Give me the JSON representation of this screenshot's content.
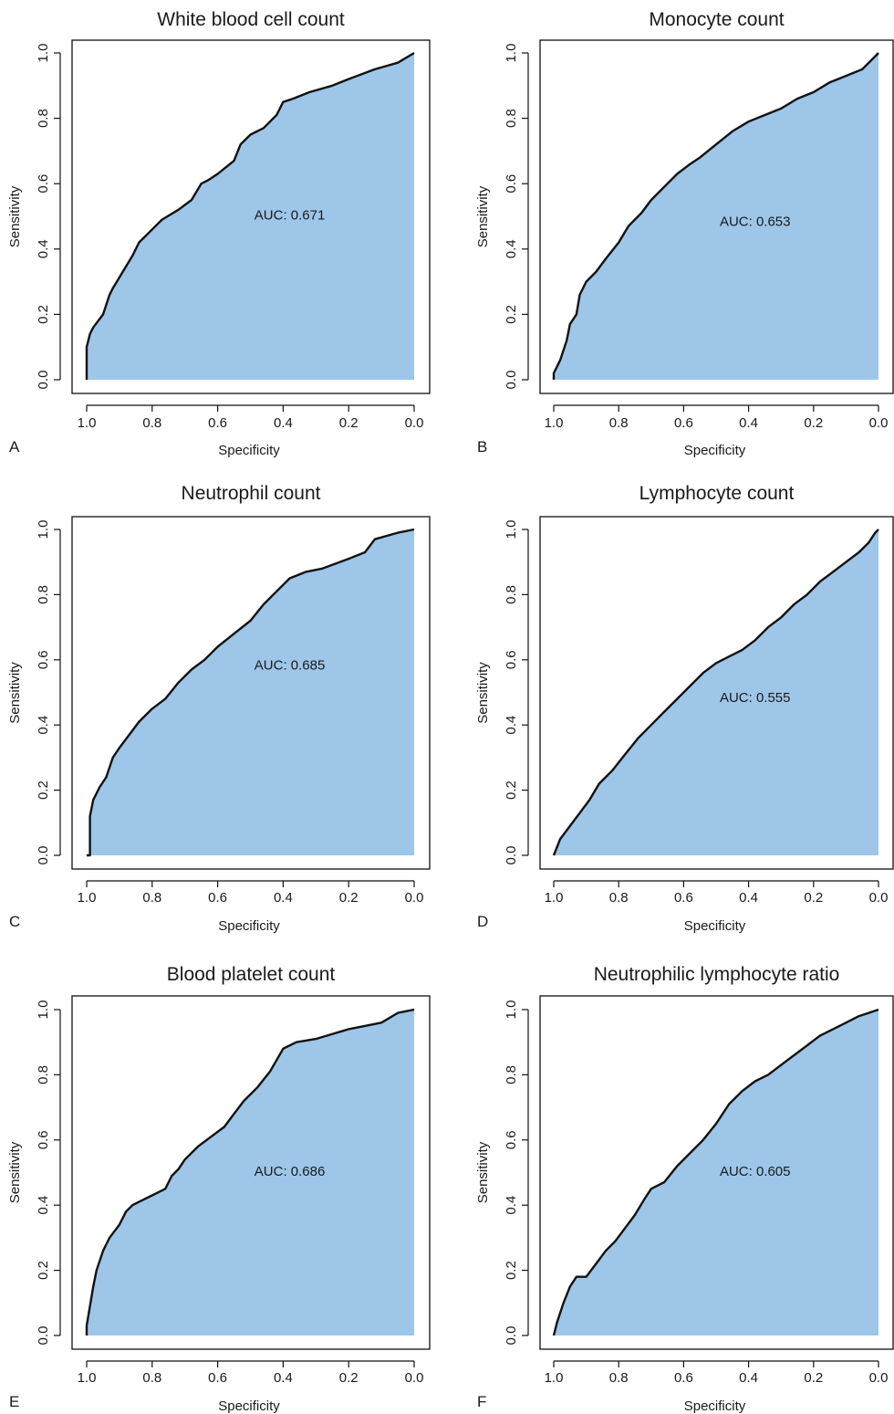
{
  "chart_data": [
    {
      "type": "area",
      "panel_letter": "A",
      "title": "White blood cell count",
      "xlabel": "Specificity",
      "ylabel": "Sensitivity",
      "xlim": [
        1.0,
        0.0
      ],
      "ylim": [
        0.0,
        1.0
      ],
      "x_ticks": [
        "1.0",
        "0.8",
        "0.6",
        "0.4",
        "0.2",
        "0.0"
      ],
      "y_ticks": [
        "0.0",
        "0.2",
        "0.4",
        "0.6",
        "0.8",
        "1.0"
      ],
      "annotation": "AUC: 0.671",
      "fill_color": "#9dc6e9",
      "series": [
        {
          "x": [
            1.0,
            1.0,
            0.99,
            0.98,
            0.95,
            0.93,
            0.92,
            0.89,
            0.86,
            0.84,
            0.82,
            0.8,
            0.77,
            0.72,
            0.68,
            0.65,
            0.63,
            0.6,
            0.55,
            0.53,
            0.5,
            0.46,
            0.42,
            0.4,
            0.37,
            0.32,
            0.25,
            0.2,
            0.12,
            0.05,
            0.0
          ],
          "y": [
            0.0,
            0.1,
            0.14,
            0.16,
            0.2,
            0.26,
            0.28,
            0.33,
            0.38,
            0.42,
            0.44,
            0.46,
            0.49,
            0.52,
            0.55,
            0.6,
            0.61,
            0.63,
            0.67,
            0.72,
            0.75,
            0.77,
            0.81,
            0.85,
            0.86,
            0.88,
            0.9,
            0.92,
            0.95,
            0.97,
            1.0
          ]
        }
      ]
    },
    {
      "type": "area",
      "panel_letter": "B",
      "title": "Monocyte count",
      "xlabel": "Specificity",
      "ylabel": "Sensitivity",
      "xlim": [
        1.0,
        0.0
      ],
      "ylim": [
        0.0,
        1.0
      ],
      "x_ticks": [
        "1.0",
        "0.8",
        "0.6",
        "0.4",
        "0.2",
        "0.0"
      ],
      "y_ticks": [
        "0.0",
        "0.2",
        "0.4",
        "0.6",
        "0.8",
        "1.0"
      ],
      "annotation": "AUC: 0.653",
      "fill_color": "#9dc6e9",
      "series": [
        {
          "x": [
            1.0,
            1.0,
            0.98,
            0.96,
            0.95,
            0.93,
            0.92,
            0.9,
            0.87,
            0.84,
            0.8,
            0.77,
            0.73,
            0.7,
            0.66,
            0.62,
            0.58,
            0.55,
            0.5,
            0.45,
            0.4,
            0.35,
            0.3,
            0.25,
            0.2,
            0.15,
            0.1,
            0.05,
            0.02,
            0.0
          ],
          "y": [
            0.0,
            0.02,
            0.06,
            0.12,
            0.17,
            0.2,
            0.26,
            0.3,
            0.33,
            0.37,
            0.42,
            0.47,
            0.51,
            0.55,
            0.59,
            0.63,
            0.66,
            0.68,
            0.72,
            0.76,
            0.79,
            0.81,
            0.83,
            0.86,
            0.88,
            0.91,
            0.93,
            0.95,
            0.98,
            1.0
          ]
        }
      ]
    },
    {
      "type": "area",
      "panel_letter": "C",
      "title": "Neutrophil count",
      "xlabel": "Specificity",
      "ylabel": "Sensitivity",
      "xlim": [
        1.0,
        0.0
      ],
      "ylim": [
        0.0,
        1.0
      ],
      "x_ticks": [
        "1.0",
        "0.8",
        "0.6",
        "0.4",
        "0.2",
        "0.0"
      ],
      "y_ticks": [
        "0.0",
        "0.2",
        "0.4",
        "0.6",
        "0.8",
        "1.0"
      ],
      "annotation": "AUC: 0.685",
      "fill_color": "#9dc6e9",
      "series": [
        {
          "x": [
            1.0,
            0.99,
            0.99,
            0.98,
            0.96,
            0.94,
            0.92,
            0.9,
            0.87,
            0.84,
            0.8,
            0.76,
            0.72,
            0.68,
            0.64,
            0.6,
            0.55,
            0.5,
            0.46,
            0.42,
            0.38,
            0.33,
            0.28,
            0.2,
            0.15,
            0.12,
            0.05,
            0.0
          ],
          "y": [
            0.0,
            0.0,
            0.12,
            0.17,
            0.21,
            0.24,
            0.3,
            0.33,
            0.37,
            0.41,
            0.45,
            0.48,
            0.53,
            0.57,
            0.6,
            0.64,
            0.68,
            0.72,
            0.77,
            0.81,
            0.85,
            0.87,
            0.88,
            0.91,
            0.93,
            0.97,
            0.99,
            1.0
          ]
        }
      ]
    },
    {
      "type": "area",
      "panel_letter": "D",
      "title": "Lymphocyte count",
      "xlabel": "Specificity",
      "ylabel": "Sensitivity",
      "xlim": [
        1.0,
        0.0
      ],
      "ylim": [
        0.0,
        1.0
      ],
      "x_ticks": [
        "1.0",
        "0.8",
        "0.6",
        "0.4",
        "0.2",
        "0.0"
      ],
      "y_ticks": [
        "0.0",
        "0.2",
        "0.4",
        "0.6",
        "0.8",
        "1.0"
      ],
      "annotation": "AUC: 0.555",
      "fill_color": "#9dc6e9",
      "series": [
        {
          "x": [
            1.0,
            0.98,
            0.95,
            0.92,
            0.89,
            0.86,
            0.82,
            0.78,
            0.74,
            0.7,
            0.66,
            0.62,
            0.58,
            0.54,
            0.5,
            0.46,
            0.42,
            0.38,
            0.34,
            0.3,
            0.26,
            0.22,
            0.18,
            0.14,
            0.1,
            0.06,
            0.03,
            0.01,
            0.0
          ],
          "y": [
            0.0,
            0.05,
            0.09,
            0.13,
            0.17,
            0.22,
            0.26,
            0.31,
            0.36,
            0.4,
            0.44,
            0.48,
            0.52,
            0.56,
            0.59,
            0.61,
            0.63,
            0.66,
            0.7,
            0.73,
            0.77,
            0.8,
            0.84,
            0.87,
            0.9,
            0.93,
            0.96,
            0.99,
            1.0
          ]
        }
      ]
    },
    {
      "type": "area",
      "panel_letter": "E",
      "title": "Blood platelet count",
      "xlabel": "Specificity",
      "ylabel": "Sensitivity",
      "xlim": [
        1.0,
        0.0
      ],
      "ylim": [
        0.0,
        1.0
      ],
      "x_ticks": [
        "1.0",
        "0.8",
        "0.6",
        "0.4",
        "0.2",
        "0.0"
      ],
      "y_ticks": [
        "0.0",
        "0.2",
        "0.4",
        "0.6",
        "0.8",
        "1.0"
      ],
      "annotation": "AUC: 0.686",
      "fill_color": "#9dc6e9",
      "series": [
        {
          "x": [
            1.0,
            1.0,
            0.99,
            0.98,
            0.97,
            0.95,
            0.93,
            0.9,
            0.88,
            0.86,
            0.84,
            0.8,
            0.78,
            0.76,
            0.74,
            0.72,
            0.7,
            0.66,
            0.62,
            0.58,
            0.55,
            0.52,
            0.48,
            0.44,
            0.4,
            0.36,
            0.3,
            0.2,
            0.1,
            0.05,
            0.0
          ],
          "y": [
            0.0,
            0.03,
            0.09,
            0.15,
            0.2,
            0.26,
            0.3,
            0.34,
            0.38,
            0.4,
            0.41,
            0.43,
            0.44,
            0.45,
            0.49,
            0.51,
            0.54,
            0.58,
            0.61,
            0.64,
            0.68,
            0.72,
            0.76,
            0.81,
            0.88,
            0.9,
            0.91,
            0.94,
            0.96,
            0.99,
            1.0
          ]
        }
      ]
    },
    {
      "type": "area",
      "panel_letter": "F",
      "title": "Neutrophilic lymphocyte ratio",
      "xlabel": "Specificity",
      "ylabel": "Sensitivity",
      "xlim": [
        1.0,
        0.0
      ],
      "ylim": [
        0.0,
        1.0
      ],
      "x_ticks": [
        "1.0",
        "0.8",
        "0.6",
        "0.4",
        "0.2",
        "0.0"
      ],
      "y_ticks": [
        "0.0",
        "0.2",
        "0.4",
        "0.6",
        "0.8",
        "1.0"
      ],
      "annotation": "AUC: 0.605",
      "fill_color": "#9dc6e9",
      "series": [
        {
          "x": [
            1.0,
            0.99,
            0.97,
            0.95,
            0.93,
            0.9,
            0.87,
            0.84,
            0.81,
            0.78,
            0.75,
            0.72,
            0.7,
            0.66,
            0.62,
            0.58,
            0.54,
            0.5,
            0.46,
            0.42,
            0.38,
            0.34,
            0.3,
            0.26,
            0.22,
            0.18,
            0.14,
            0.1,
            0.06,
            0.03,
            0.0
          ],
          "y": [
            0.0,
            0.04,
            0.1,
            0.15,
            0.18,
            0.18,
            0.22,
            0.26,
            0.29,
            0.33,
            0.37,
            0.42,
            0.45,
            0.47,
            0.52,
            0.56,
            0.6,
            0.65,
            0.71,
            0.75,
            0.78,
            0.8,
            0.83,
            0.86,
            0.89,
            0.92,
            0.94,
            0.96,
            0.98,
            0.99,
            1.0
          ]
        }
      ]
    }
  ]
}
